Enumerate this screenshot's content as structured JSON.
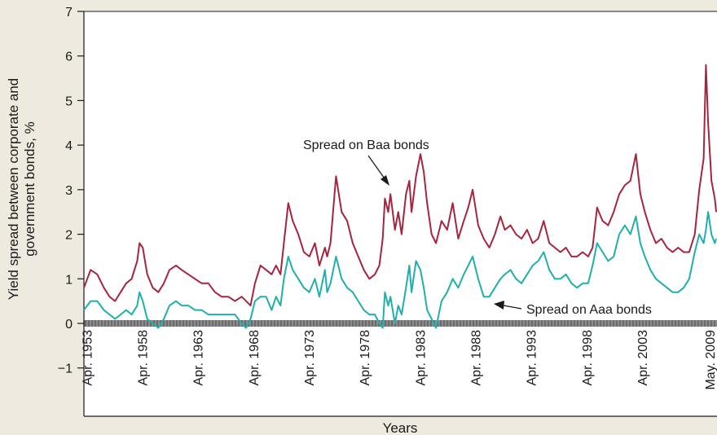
{
  "chart_data": {
    "type": "line",
    "title": "",
    "xlabel": "Years",
    "ylabel": [
      "Yield spread between corporate and",
      "government bonds, %"
    ],
    "ylim": [
      -2,
      7
    ],
    "yticks": [
      "7",
      "6",
      "5",
      "4",
      "3",
      "2",
      "1",
      "0",
      "−1"
    ],
    "xlim": [
      1953.0,
      2010.0
    ],
    "x_tick_labels": [
      "Apr. 1953",
      "Apr. 1958",
      "Apr. 1963",
      "Apr. 1968",
      "Apr. 1973",
      "Apr. 1978",
      "Apr. 1983",
      "Apr. 1988",
      "Apr. 1993",
      "Apr. 1998",
      "Apr. 2003",
      "May. 2009"
    ],
    "x_tick_values": [
      1953.25,
      1958.25,
      1963.25,
      1968.25,
      1973.25,
      1978.25,
      1983.25,
      1988.25,
      1993.25,
      1998.25,
      2003.25,
      2009.33
    ],
    "grid": false,
    "colors": {
      "baa": "#a7243f",
      "aaa": "#1fb0ac",
      "plot_bg": "#ffffff",
      "zero_band": "#6a6a6a"
    },
    "annotations": [
      {
        "text": "Spread on Baa bonds",
        "series": "baa"
      },
      {
        "text": "Spread on Aaa bonds",
        "series": "aaa"
      }
    ],
    "series": [
      {
        "name": "Spread on Baa bonds",
        "x": [
          1953.0,
          1953.6,
          1954.2,
          1954.8,
          1955.3,
          1955.8,
          1956.3,
          1956.8,
          1957.3,
          1957.8,
          1958.0,
          1958.3,
          1958.7,
          1959.2,
          1959.7,
          1960.2,
          1960.7,
          1961.3,
          1961.8,
          1962.4,
          1963.0,
          1963.6,
          1964.2,
          1964.8,
          1965.4,
          1966.0,
          1966.6,
          1967.2,
          1967.6,
          1968.0,
          1968.4,
          1968.9,
          1969.4,
          1969.9,
          1970.3,
          1970.7,
          1971.0,
          1971.4,
          1971.8,
          1972.3,
          1972.8,
          1973.3,
          1973.8,
          1974.2,
          1974.7,
          1974.9,
          1975.2,
          1975.7,
          1976.2,
          1976.7,
          1977.2,
          1977.7,
          1978.2,
          1978.7,
          1979.2,
          1979.6,
          1979.9,
          1980.1,
          1980.4,
          1980.6,
          1981.0,
          1981.3,
          1981.6,
          1982.0,
          1982.3,
          1982.5,
          1982.9,
          1983.3,
          1983.6,
          1983.9,
          1984.3,
          1984.7,
          1985.2,
          1985.7,
          1986.2,
          1986.7,
          1987.2,
          1987.6,
          1988.0,
          1988.5,
          1989.0,
          1989.5,
          1990.0,
          1990.5,
          1990.9,
          1991.4,
          1991.9,
          1992.4,
          1992.9,
          1993.4,
          1993.9,
          1994.4,
          1994.9,
          1995.4,
          1995.9,
          1996.4,
          1996.9,
          1997.4,
          1997.9,
          1998.4,
          1998.8,
          1999.2,
          1999.7,
          2000.2,
          2000.7,
          2001.2,
          2001.7,
          2002.2,
          2002.7,
          2003.1,
          2003.5,
          2004.0,
          2004.5,
          2005.0,
          2005.5,
          2006.0,
          2006.5,
          2007.0,
          2007.5,
          2008.0,
          2008.4,
          2008.8,
          2009.0,
          2009.2,
          2009.5,
          2009.8,
          2010.0
        ],
        "y": [
          0.8,
          1.2,
          1.1,
          0.8,
          0.6,
          0.5,
          0.7,
          0.9,
          1.0,
          1.4,
          1.8,
          1.7,
          1.1,
          0.8,
          0.7,
          0.9,
          1.2,
          1.3,
          1.2,
          1.1,
          1.0,
          0.9,
          0.9,
          0.7,
          0.6,
          0.6,
          0.5,
          0.6,
          0.5,
          0.4,
          0.9,
          1.3,
          1.2,
          1.1,
          1.3,
          1.1,
          1.8,
          2.7,
          2.3,
          2.0,
          1.6,
          1.5,
          1.8,
          1.3,
          1.7,
          1.5,
          1.8,
          3.3,
          2.5,
          2.3,
          1.8,
          1.5,
          1.2,
          1.0,
          1.1,
          1.3,
          1.9,
          2.8,
          2.5,
          2.9,
          2.1,
          2.5,
          2.0,
          2.9,
          3.2,
          2.5,
          3.3,
          3.8,
          3.4,
          2.7,
          2.0,
          1.8,
          2.3,
          2.1,
          2.7,
          1.9,
          2.3,
          2.6,
          3.0,
          2.2,
          1.9,
          1.7,
          2.0,
          2.4,
          2.1,
          2.2,
          2.0,
          1.9,
          2.1,
          1.8,
          1.9,
          2.3,
          1.8,
          1.7,
          1.6,
          1.7,
          1.5,
          1.5,
          1.6,
          1.5,
          1.7,
          2.6,
          2.3,
          2.2,
          2.5,
          2.9,
          3.1,
          3.2,
          3.8,
          2.9,
          2.5,
          2.1,
          1.8,
          1.9,
          1.7,
          1.6,
          1.7,
          1.6,
          1.6,
          2.0,
          3.0,
          3.7,
          5.8,
          4.5,
          3.2,
          2.8,
          2.5
        ]
      },
      {
        "name": "Spread on Aaa bonds",
        "x": [
          1953.0,
          1953.6,
          1954.2,
          1954.8,
          1955.3,
          1955.8,
          1956.3,
          1956.8,
          1957.3,
          1957.8,
          1958.0,
          1958.3,
          1958.7,
          1959.2,
          1959.7,
          1960.2,
          1960.7,
          1961.3,
          1961.8,
          1962.4,
          1963.0,
          1963.6,
          1964.2,
          1964.8,
          1965.4,
          1966.0,
          1966.6,
          1967.2,
          1967.6,
          1968.0,
          1968.4,
          1968.9,
          1969.4,
          1969.9,
          1970.3,
          1970.7,
          1971.0,
          1971.4,
          1971.8,
          1972.3,
          1972.8,
          1973.3,
          1973.8,
          1974.2,
          1974.7,
          1974.9,
          1975.2,
          1975.7,
          1976.2,
          1976.7,
          1977.2,
          1977.7,
          1978.2,
          1978.7,
          1979.2,
          1979.6,
          1979.9,
          1980.1,
          1980.4,
          1980.6,
          1981.0,
          1981.3,
          1981.6,
          1982.0,
          1982.3,
          1982.5,
          1982.9,
          1983.3,
          1983.6,
          1983.9,
          1984.3,
          1984.7,
          1985.2,
          1985.7,
          1986.2,
          1986.7,
          1987.2,
          1987.6,
          1988.0,
          1988.5,
          1989.0,
          1989.5,
          1990.0,
          1990.5,
          1990.9,
          1991.4,
          1991.9,
          1992.4,
          1992.9,
          1993.4,
          1993.9,
          1994.4,
          1994.9,
          1995.4,
          1995.9,
          1996.4,
          1996.9,
          1997.4,
          1997.9,
          1998.4,
          1998.8,
          1999.2,
          1999.7,
          2000.2,
          2000.7,
          2001.2,
          2001.7,
          2002.2,
          2002.7,
          2003.1,
          2003.5,
          2004.0,
          2004.5,
          2005.0,
          2005.5,
          2006.0,
          2006.5,
          2007.0,
          2007.5,
          2008.0,
          2008.4,
          2008.8,
          2009.0,
          2009.2,
          2009.5,
          2009.8,
          2010.0
        ],
        "y": [
          0.3,
          0.5,
          0.5,
          0.3,
          0.2,
          0.1,
          0.2,
          0.3,
          0.2,
          0.4,
          0.7,
          0.5,
          0.1,
          0.0,
          -0.1,
          0.1,
          0.4,
          0.5,
          0.4,
          0.4,
          0.3,
          0.3,
          0.2,
          0.2,
          0.2,
          0.2,
          0.2,
          0.0,
          -0.1,
          0.1,
          0.5,
          0.6,
          0.6,
          0.3,
          0.6,
          0.4,
          1.0,
          1.5,
          1.2,
          1.0,
          0.8,
          0.7,
          1.0,
          0.6,
          1.2,
          0.7,
          0.9,
          1.5,
          1.0,
          0.8,
          0.7,
          0.5,
          0.3,
          0.2,
          0.2,
          0.0,
          -0.1,
          0.7,
          0.4,
          0.6,
          0.0,
          0.4,
          0.2,
          0.8,
          1.3,
          0.7,
          1.4,
          1.2,
          0.8,
          0.3,
          0.1,
          -0.1,
          0.5,
          0.7,
          1.0,
          0.8,
          1.1,
          1.3,
          1.5,
          1.0,
          0.6,
          0.6,
          0.8,
          1.0,
          1.1,
          1.2,
          1.0,
          0.9,
          1.1,
          1.3,
          1.4,
          1.6,
          1.2,
          1.0,
          1.0,
          1.1,
          0.9,
          0.8,
          0.9,
          0.9,
          1.3,
          1.8,
          1.6,
          1.4,
          1.5,
          2.0,
          2.2,
          2.0,
          2.4,
          1.8,
          1.5,
          1.2,
          1.0,
          0.9,
          0.8,
          0.7,
          0.7,
          0.8,
          1.0,
          1.6,
          2.0,
          1.8,
          2.1,
          2.5,
          2.0,
          1.8,
          1.9
        ]
      }
    ]
  }
}
